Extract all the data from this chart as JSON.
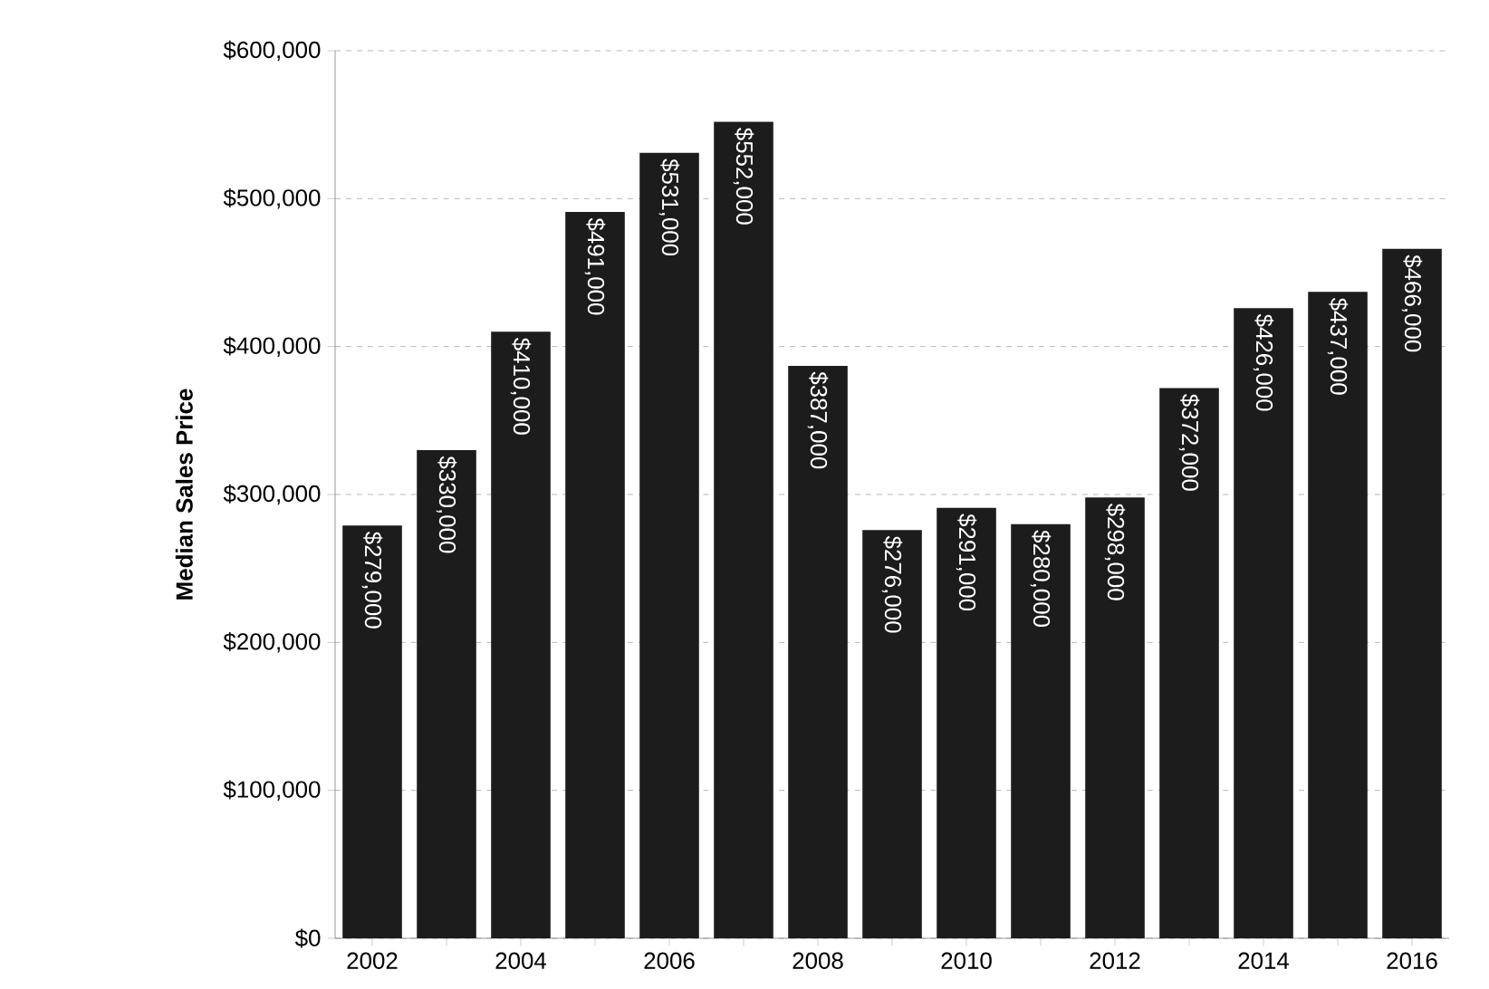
{
  "chart_data": {
    "type": "bar",
    "ylabel": "Median Sales Price",
    "categories": [
      "2002",
      null,
      "2004",
      null,
      "2006",
      null,
      "2008",
      null,
      "2010",
      null,
      "2012",
      null,
      "2014",
      null,
      "2016"
    ],
    "values": [
      279000,
      330000,
      410000,
      491000,
      531000,
      552000,
      387000,
      276000,
      291000,
      280000,
      298000,
      372000,
      426000,
      437000,
      466000
    ],
    "value_labels": [
      "$279,000",
      "$330,000",
      "$410,000",
      "$491,000",
      "$531,000",
      "$552,000",
      "$387,000",
      "$276,000",
      "$291,000",
      "$280,000",
      "$298,000",
      "$372,000",
      "$426,000",
      "$437,000",
      "$466,000"
    ],
    "color": "#1c1c1c",
    "ylim": [
      0,
      600000
    ],
    "yticks": [
      {
        "value": 0,
        "label": "$0"
      },
      {
        "value": 100000,
        "label": "$100,000"
      },
      {
        "value": 200000,
        "label": "$200,000"
      },
      {
        "value": 300000,
        "label": "$300,000"
      },
      {
        "value": 400000,
        "label": "$400,000"
      },
      {
        "value": 500000,
        "label": "$500,000"
      },
      {
        "value": 600000,
        "label": "$600,000"
      }
    ],
    "grid": "y"
  }
}
